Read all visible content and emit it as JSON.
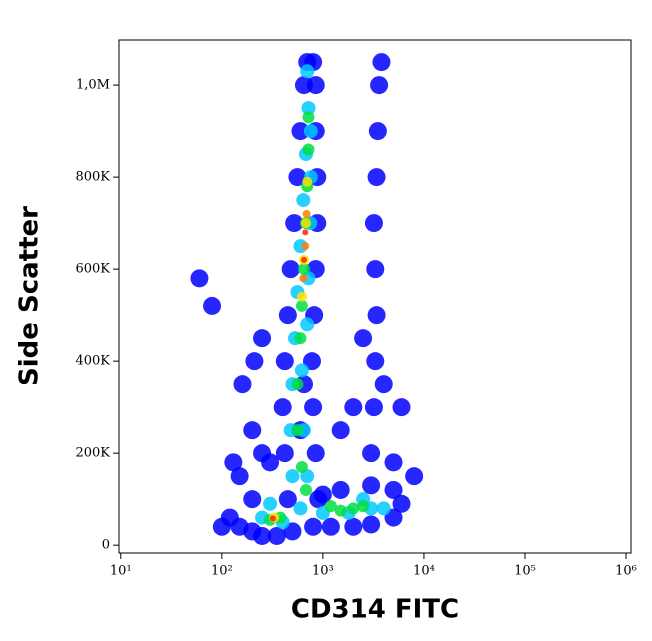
{
  "chart_data": {
    "type": "scatter",
    "x_label": "CD314 FITC",
    "y_label": "Side Scatter",
    "xscale": "log",
    "xlim": [
      9.6,
      1120000
    ],
    "xticks": [
      {
        "value": 10,
        "label": "10¹"
      },
      {
        "value": 100,
        "label": "10²"
      },
      {
        "value": 1000,
        "label": "10³"
      },
      {
        "value": 10000,
        "label": "10⁴"
      },
      {
        "value": 100000,
        "label": "10⁵"
      },
      {
        "value": 1000000,
        "label": "10⁶"
      }
    ],
    "ylim": [
      -17000,
      1098000
    ],
    "yticks": [
      0,
      {
        "value": 200000,
        "label": "200K"
      },
      {
        "value": 400000,
        "label": "400K"
      },
      {
        "value": 600000,
        "label": "600K"
      },
      {
        "value": 800000,
        "label": "800K"
      },
      {
        "value": 1000000,
        "label": "1,0M"
      }
    ],
    "series": [
      {
        "color": "#0000ff",
        "x": [
          450,
          420,
          400,
          420,
          450,
          480,
          520,
          560,
          600,
          650,
          700,
          900,
          850,
          800,
          780,
          820,
          850,
          880,
          880,
          850,
          850,
          800,
          600,
          650,
          150,
          200,
          250,
          350,
          500,
          800,
          1200,
          2000,
          3000,
          5000,
          6000,
          5000,
          3000,
          1500,
          1000,
          200,
          150,
          250,
          200,
          300,
          120,
          100,
          130,
          160,
          210,
          250,
          60,
          80,
          3000,
          3200,
          3300,
          3400,
          3300,
          3200,
          3400,
          3500,
          3600,
          3800,
          2500,
          4000,
          6000,
          5000,
          8000,
          2000,
          1500
        ],
        "values": [
          100000,
          200000,
          300000,
          400000,
          500000,
          600000,
          700000,
          800000,
          900000,
          1000000,
          1050000,
          100000,
          200000,
          300000,
          400000,
          500000,
          600000,
          700000,
          800000,
          900000,
          1000000,
          1050000,
          250000,
          350000,
          40000,
          30000,
          20000,
          20000,
          30000,
          40000,
          40000,
          40000,
          45000,
          60000,
          90000,
          120000,
          130000,
          120000,
          110000,
          100000,
          150000,
          200000,
          250000,
          180000,
          60000,
          40000,
          180000,
          350000,
          400000,
          450000,
          580000,
          520000,
          200000,
          300000,
          400000,
          500000,
          600000,
          700000,
          800000,
          900000,
          1000000,
          1050000,
          450000,
          350000,
          300000,
          180000,
          150000,
          300000,
          250000
        ]
      },
      {
        "color": "#00c8ff",
        "x": [
          500,
          480,
          500,
          530,
          560,
          600,
          640,
          680,
          720,
          700,
          700,
          650,
          620,
          700,
          720,
          750,
          760,
          760,
          250,
          400,
          1000,
          1800,
          3000,
          4000,
          2500,
          600,
          300
        ],
        "values": [
          150000,
          250000,
          350000,
          450000,
          550000,
          650000,
          750000,
          850000,
          950000,
          1030000,
          150000,
          250000,
          380000,
          480000,
          580000,
          700000,
          800000,
          900000,
          60000,
          50000,
          70000,
          70000,
          80000,
          80000,
          100000,
          80000,
          90000
        ]
      },
      {
        "color": "#00e040",
        "x": [
          560,
          600,
          620,
          650,
          680,
          700,
          720,
          720,
          560,
          620,
          680,
          300,
          380,
          1500,
          2000,
          2500,
          1200
        ],
        "values": [
          350000,
          450000,
          520000,
          600000,
          700000,
          780000,
          860000,
          930000,
          250000,
          170000,
          120000,
          55000,
          60000,
          75000,
          80000,
          85000,
          85000
        ]
      },
      {
        "color": "#ffe000",
        "x": [
          620,
          650,
          680,
          700,
          330
        ],
        "values": [
          540000,
          620000,
          700000,
          790000,
          60000
        ]
      },
      {
        "color": "#ff8000",
        "x": [
          640,
          670,
          690
        ],
        "values": [
          580000,
          650000,
          720000
        ]
      },
      {
        "color": "#ff2000",
        "x": [
          650,
          670,
          320
        ],
        "values": [
          620000,
          680000,
          58000
        ]
      }
    ]
  }
}
